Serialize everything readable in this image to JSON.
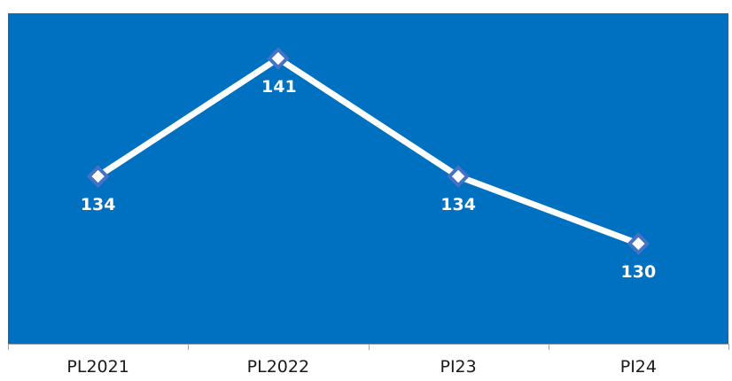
{
  "chart_data": {
    "type": "line",
    "categories": [
      "PL2021",
      "PL2022",
      "PI23",
      "PI24"
    ],
    "series": [
      {
        "values": [
          134,
          141,
          134,
          130
        ]
      }
    ],
    "data_labels": [
      "134",
      "141",
      "134",
      "130"
    ],
    "title": "",
    "xlabel": "",
    "ylabel": "",
    "grid": false,
    "legend": "none",
    "colors": {
      "plot_background": "#0070C0",
      "line": "#FFFFFF",
      "marker_outline": "#4472C4",
      "marker_fill": "#FFFFFF",
      "axis": "#A6A6A6"
    }
  }
}
